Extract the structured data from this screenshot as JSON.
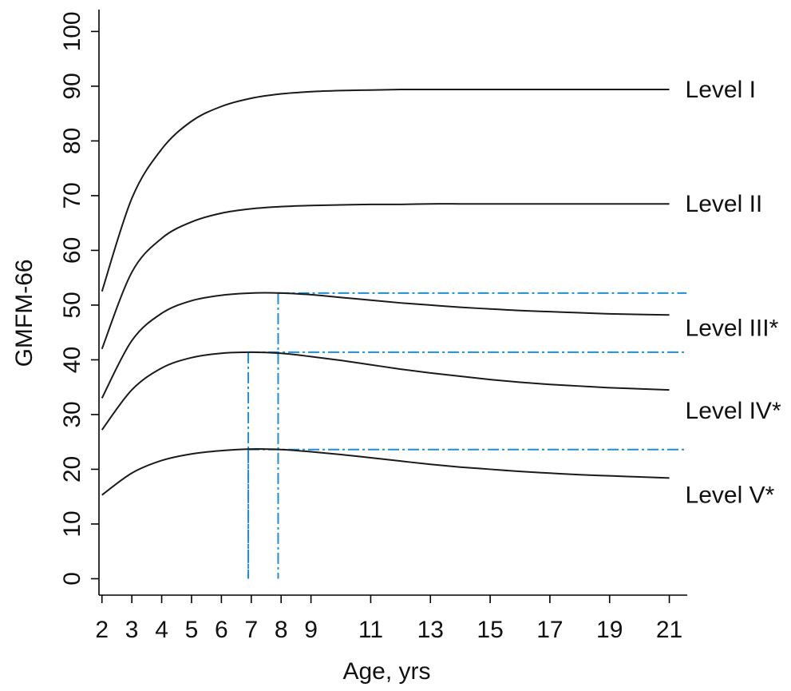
{
  "chart_data": {
    "type": "line",
    "xlabel": "Age, yrs",
    "ylabel": "GMFM-66",
    "xlim": [
      1.9,
      21.6
    ],
    "ylim": [
      -3,
      104
    ],
    "x_ticks": [
      2,
      3,
      4,
      5,
      6,
      7,
      8,
      9,
      11,
      13,
      15,
      17,
      19,
      21
    ],
    "y_ticks": [
      0,
      10,
      20,
      30,
      40,
      50,
      60,
      70,
      80,
      90,
      100
    ],
    "x": [
      2,
      3,
      4,
      5,
      6,
      7,
      8,
      9,
      10,
      11,
      12,
      13,
      14,
      15,
      16,
      17,
      18,
      19,
      20,
      21
    ],
    "series": [
      {
        "name": "Level I",
        "values": [
          52.5,
          69.5,
          78.5,
          83.6,
          86.3,
          87.8,
          88.6,
          89.0,
          89.2,
          89.3,
          89.4,
          89.4,
          89.4,
          89.4,
          89.4,
          89.4,
          89.4,
          89.4,
          89.4,
          89.4
        ]
      },
      {
        "name": "Level II",
        "values": [
          42,
          56,
          62.2,
          65.2,
          66.8,
          67.6,
          68.0,
          68.2,
          68.3,
          68.4,
          68.4,
          68.5,
          68.5,
          68.5,
          68.5,
          68.5,
          68.5,
          68.5,
          68.5,
          68.5
        ]
      },
      {
        "name": "Level III*",
        "values": [
          33,
          43.5,
          48.5,
          50.8,
          51.8,
          52.2,
          52.2,
          51.9,
          51.4,
          50.9,
          50.4,
          50.0,
          49.6,
          49.3,
          49.0,
          48.8,
          48.6,
          48.4,
          48.3,
          48.2
        ]
      },
      {
        "name": "Level IV*",
        "values": [
          27.2,
          34.5,
          38.5,
          40.4,
          41.2,
          41.4,
          41.2,
          40.6,
          39.9,
          39.1,
          38.3,
          37.6,
          37.0,
          36.4,
          35.9,
          35.5,
          35.2,
          34.9,
          34.7,
          34.5
        ]
      },
      {
        "name": "Level V*",
        "values": [
          15.3,
          19.3,
          21.6,
          22.8,
          23.4,
          23.7,
          23.6,
          23.2,
          22.7,
          22.1,
          21.5,
          20.9,
          20.4,
          20.0,
          19.6,
          19.3,
          19.0,
          18.8,
          18.6,
          18.4
        ]
      }
    ],
    "reference_lines": [
      {
        "series": "Level III*",
        "peak_age": 7.9,
        "peak_value": 52.2
      },
      {
        "series": "Level IV*",
        "peak_age": 6.9,
        "peak_value": 41.4
      },
      {
        "series": "Level V*",
        "peak_age": 6.9,
        "peak_value": 23.6
      }
    ],
    "legend": "direct labels at right end of each curve",
    "grid": false
  },
  "colors": {
    "curve": "#1a1a1a",
    "reference": "#1f8fd0",
    "axis": "#000000"
  }
}
